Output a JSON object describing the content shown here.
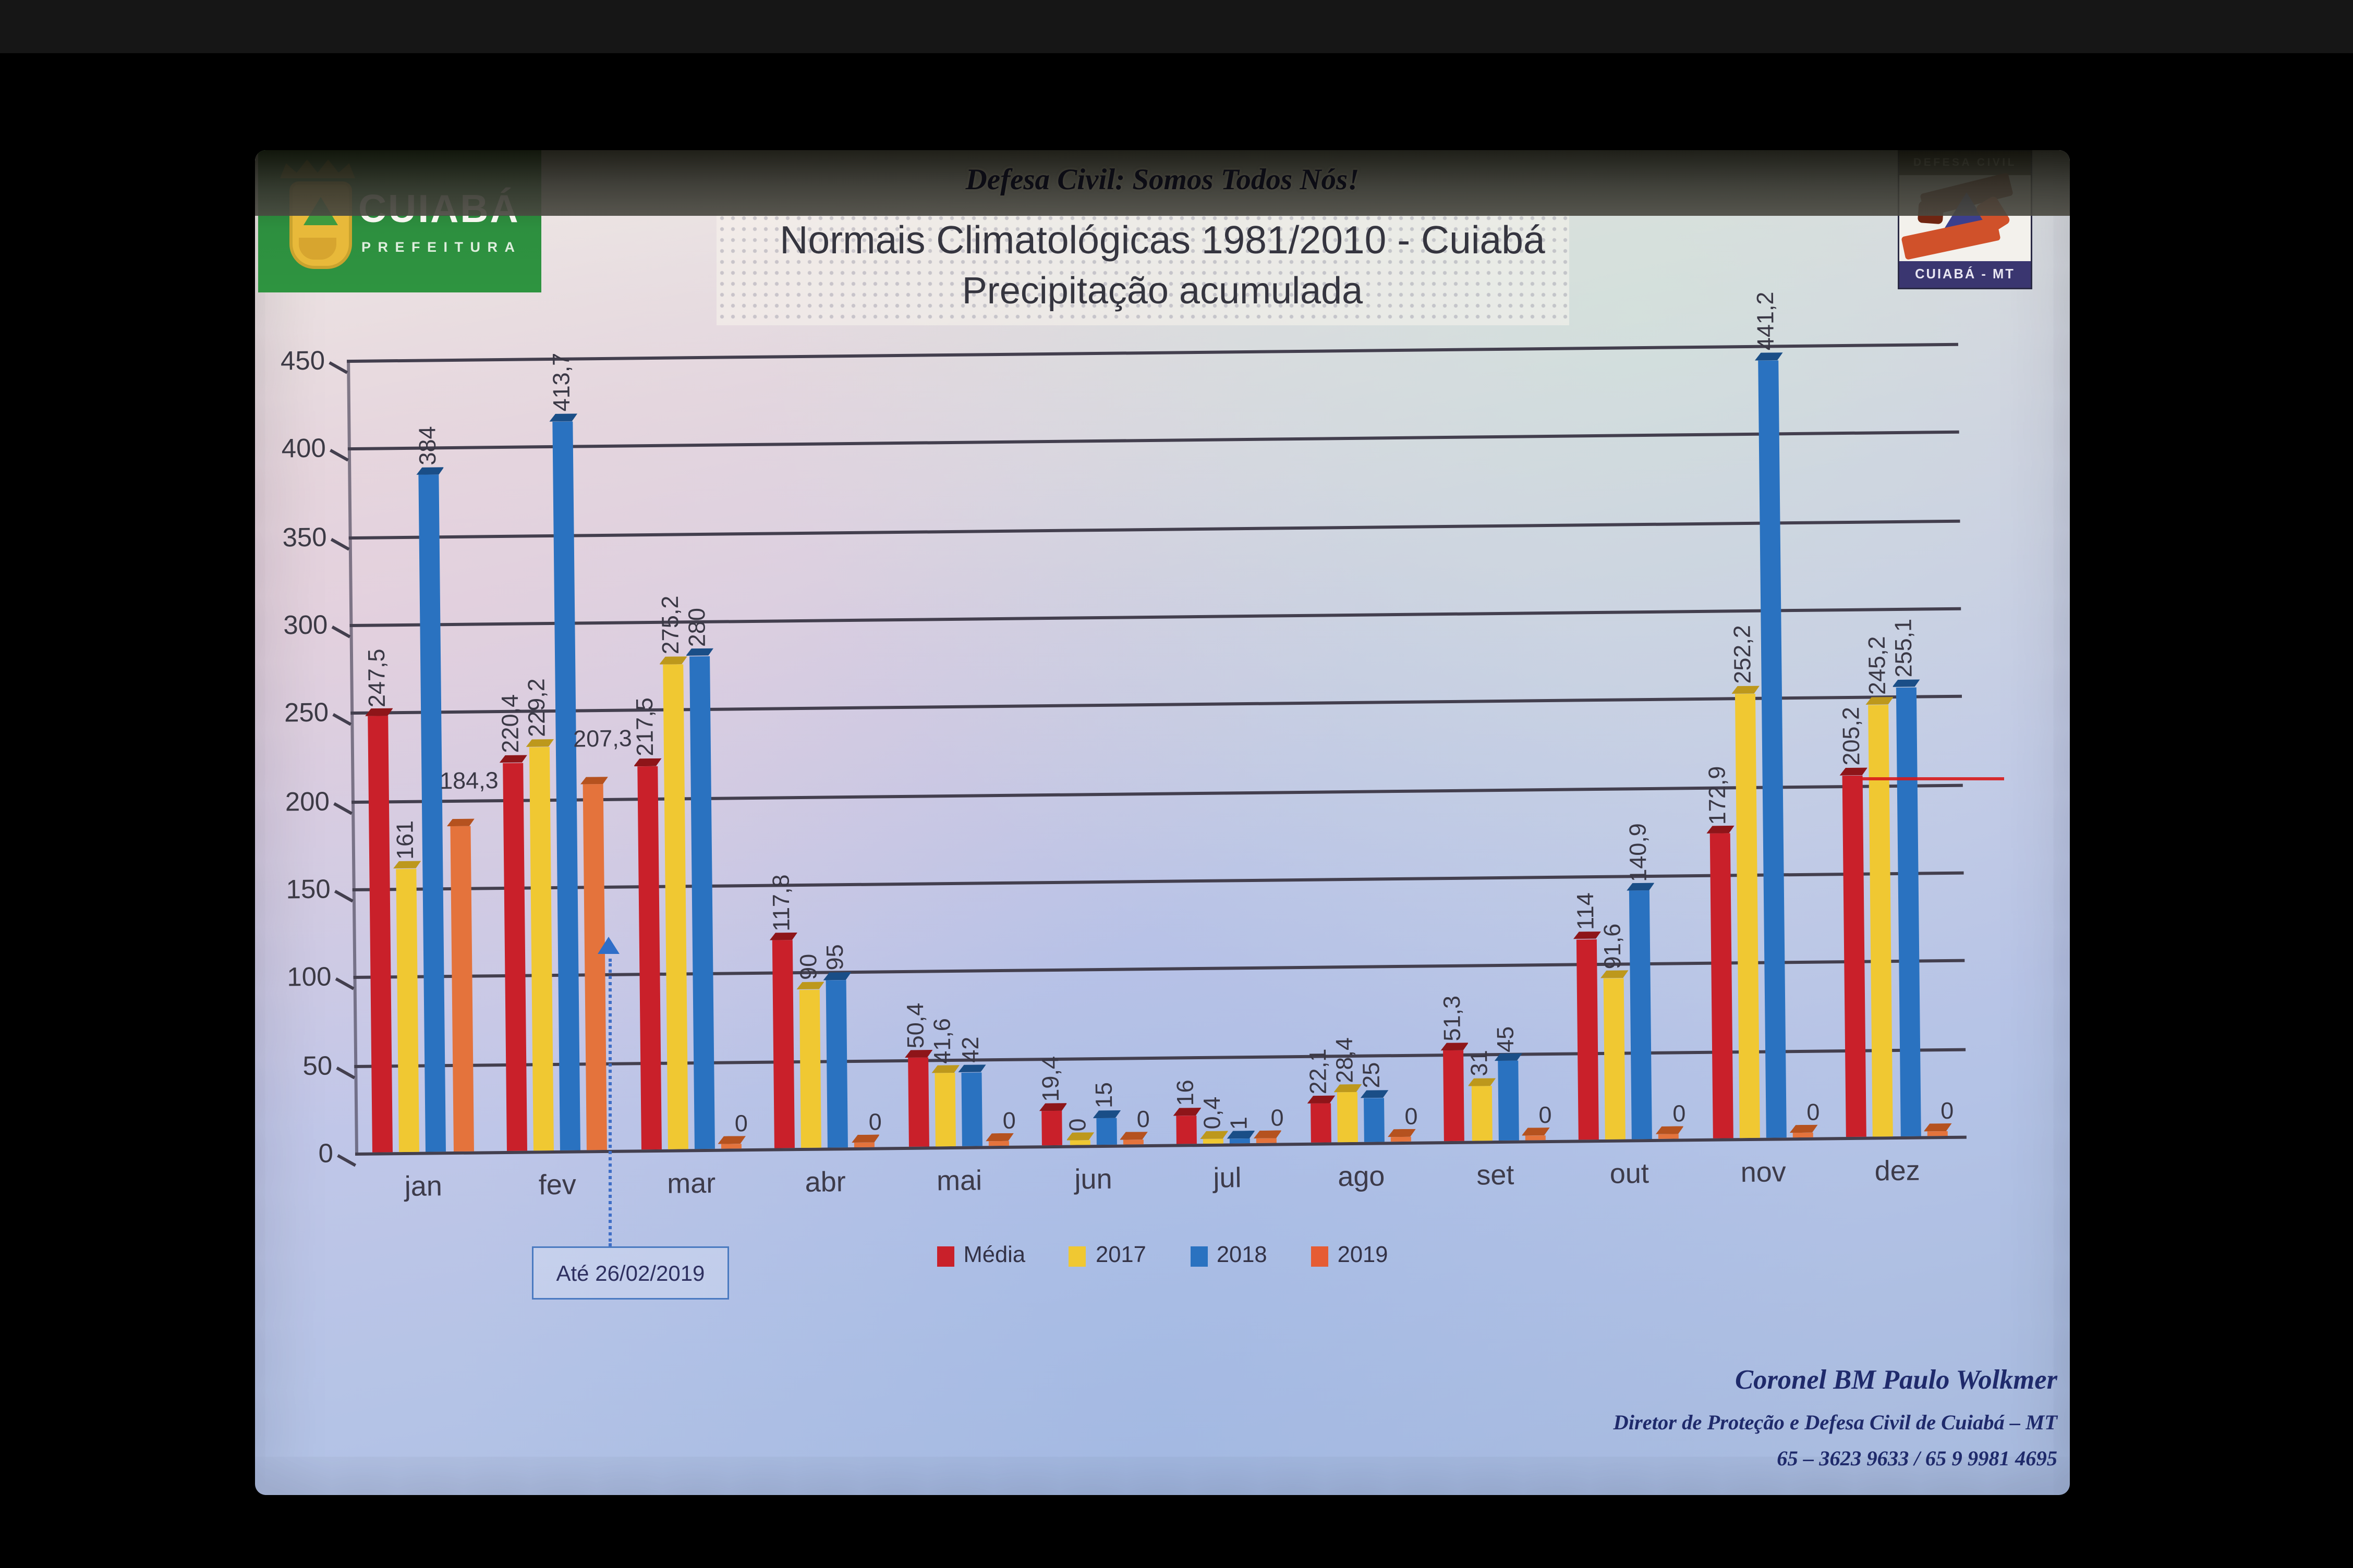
{
  "header": {
    "banner": "Defesa Civil: Somos Todos Nós!",
    "title_line1": "Normais Climatológicas 1981/2010 - Cuiabá",
    "title_line2": "Precipitação acumulada"
  },
  "logos": {
    "prefeitura": {
      "name": "CUIABÁ",
      "subtitle": "PREFEITURA"
    },
    "defesa_civil": {
      "top": "DEFESA CIVIL",
      "bottom": "CUIABÁ - MT"
    }
  },
  "chart_data": {
    "type": "bar",
    "title": "Normais Climatológicas 1981/2010 - Cuiabá — Precipitação acumulada",
    "categories": [
      "jan",
      "fev",
      "mar",
      "abr",
      "mai",
      "jun",
      "jul",
      "ago",
      "set",
      "out",
      "nov",
      "dez"
    ],
    "series": [
      {
        "name": "Média",
        "color": "#c9202a",
        "top_color": "#8e1519",
        "label_style": "vertical",
        "values": [
          247.5,
          220.4,
          217.5,
          117.8,
          50.4,
          19.4,
          16,
          22.1,
          51.3,
          114,
          172.9,
          205.2
        ],
        "labels": [
          "247,5",
          "220,4",
          "217,5",
          "117,8",
          "50,4",
          "19,4",
          "16",
          "22,1",
          "51,3",
          "114",
          "172,9",
          "205,2"
        ]
      },
      {
        "name": "2017",
        "color": "#f0c832",
        "top_color": "#bd981c",
        "label_style": "vertical",
        "values": [
          161,
          229.2,
          275.2,
          90,
          41.6,
          0,
          0.4,
          28.4,
          31,
          91.6,
          252.2,
          245.2
        ],
        "labels": [
          "161",
          "229,2",
          "275,2",
          "90",
          "41,6",
          "0",
          "0,4",
          "28,4",
          "31",
          "91,6",
          "252,2",
          "245,2"
        ]
      },
      {
        "name": "2018",
        "color": "#2a72c0",
        "top_color": "#1a4e87",
        "label_style": "vertical",
        "values": [
          384,
          413.7,
          280,
          95,
          42,
          15,
          1,
          25,
          45,
          140.9,
          441.2,
          255.1
        ],
        "labels": [
          "384",
          "413,7",
          "280",
          "95",
          "42",
          "15",
          "1",
          "25",
          "45",
          "140,9",
          "441,2",
          "255,1"
        ]
      },
      {
        "name": "2019",
        "color": "#e4733c",
        "top_color": "#b5521f",
        "legend_color": "#e65c33",
        "label_style": "horizontal",
        "values": [
          184.3,
          207.3,
          0,
          0,
          0,
          0,
          0,
          0,
          0,
          0,
          0,
          0
        ],
        "labels": [
          "184,3",
          "207,3",
          "0",
          "0",
          "0",
          "0",
          "0",
          "0",
          "0",
          "0",
          "0",
          "0"
        ]
      }
    ],
    "xlabel": "",
    "ylabel": "",
    "ylim": [
      0,
      450
    ],
    "yticks": [
      0,
      50,
      100,
      150,
      200,
      250,
      300,
      350,
      400,
      450
    ],
    "grid": true,
    "legend_position": "bottom"
  },
  "annotation": {
    "box_label": "Até 26/02/2019"
  },
  "footer": {
    "line1": "Coronel BM Paulo Wolkmer",
    "line2": "Diretor de Proteção e Defesa Civil de Cuiabá – MT",
    "line3": "65 – 3623 9633 / 65 9 9981 4695"
  }
}
